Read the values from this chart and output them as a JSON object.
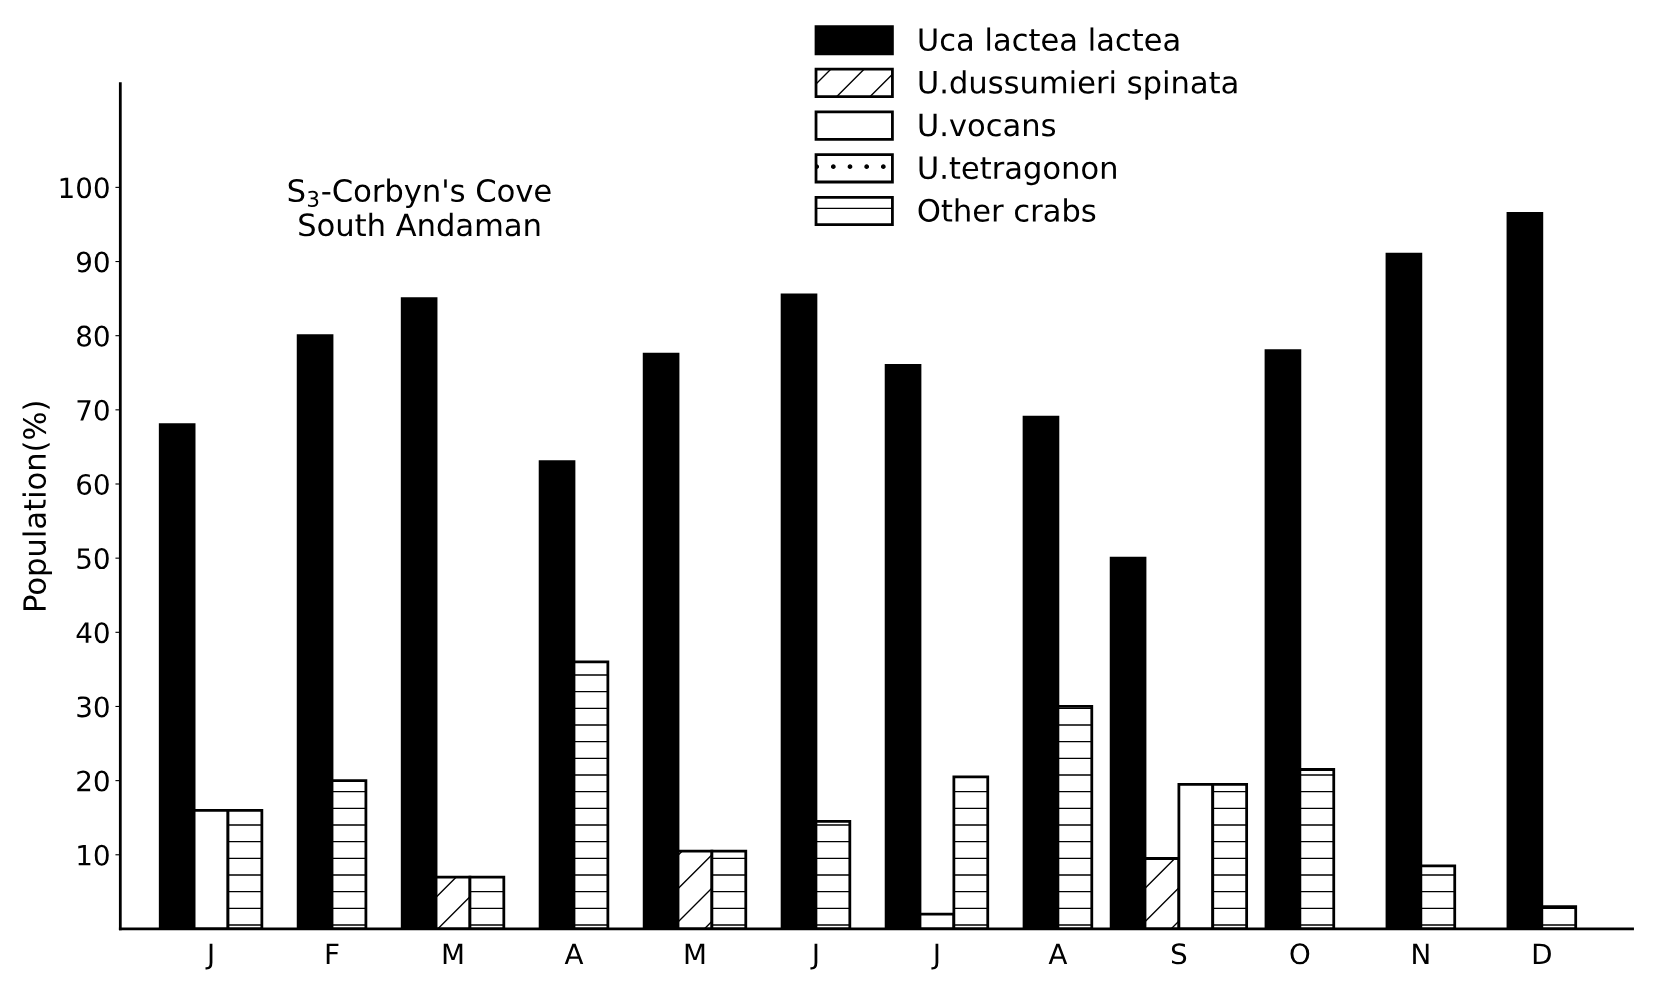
{
  "chart_data": {
    "type": "bar",
    "ylabel": "Population(%)",
    "categories": [
      "J",
      "F",
      "M",
      "A",
      "M",
      "J",
      "J",
      "A",
      "S",
      "O",
      "N",
      "D"
    ],
    "series": [
      {
        "name": "Uca lactea lactea",
        "color": "#000000",
        "values": [
          68,
          80,
          85,
          63,
          77.5,
          85.5,
          76,
          69,
          50,
          78,
          91,
          96.5
        ]
      },
      {
        "name": "U.dussumieri spinata",
        "color": "#000000",
        "values": [
          null,
          null,
          7,
          null,
          10.5,
          null,
          null,
          null,
          9.5,
          null,
          null,
          null
        ]
      },
      {
        "name": "U.vocans",
        "color": "#ffffff",
        "values": [
          16,
          null,
          null,
          null,
          null,
          null,
          2,
          null,
          19.5,
          null,
          null,
          null
        ]
      },
      {
        "name": "U.tetragonon",
        "color": "#000000",
        "values": [
          null,
          null,
          null,
          null,
          null,
          null,
          null,
          null,
          null,
          null,
          null,
          null
        ]
      },
      {
        "name": "Other crabs",
        "color": "#000000",
        "values": [
          16,
          20,
          7,
          36,
          10.5,
          14.5,
          20.5,
          30,
          19.5,
          21.5,
          8.5,
          3
        ]
      }
    ],
    "ylim": [
      0,
      114
    ],
    "yticks": [
      10,
      20,
      30,
      40,
      50,
      60,
      70,
      80,
      90,
      100
    ],
    "grid": false,
    "legend": "top",
    "annotations": [
      "S$_{3}$-Corbyn's Cove\nSouth Andaman"
    ]
  }
}
